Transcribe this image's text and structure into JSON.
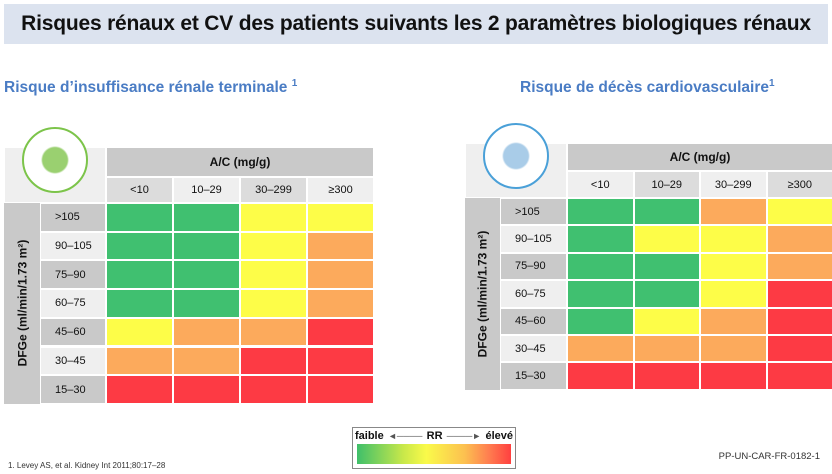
{
  "title": "Risques rénaux et CV des patients suivants les 2 paramètres biologiques rénaux",
  "colors": {
    "G": "#40c070",
    "Y": "#fdfd48",
    "O": "#fcaa5c",
    "R": "#fd3a44",
    "header_gray": "#c9c9c9",
    "header_light": "#efefef",
    "title_bg": "#dce3ef",
    "subtitle_blue": "#4a7cc4"
  },
  "chart_data": [
    {
      "type": "heatmap",
      "title": "Risque d’insuffisance rénale terminale",
      "title_sup": "1",
      "icon": "kidney-icon",
      "xlabel": "A/C (mg/g)",
      "ylabel": "DFGe (ml/min/1.73 m²)",
      "columns": [
        "<10",
        "10–29",
        "30–299",
        "≥300"
      ],
      "rows": [
        ">105",
        "90–105",
        "75–90",
        "60–75",
        "45–60",
        "30–45",
        "15–30"
      ],
      "levels": [
        [
          "G",
          "G",
          "Y",
          "Y"
        ],
        [
          "G",
          "G",
          "Y",
          "O"
        ],
        [
          "G",
          "G",
          "Y",
          "O"
        ],
        [
          "G",
          "G",
          "Y",
          "O"
        ],
        [
          "Y",
          "O",
          "O",
          "R"
        ],
        [
          "O",
          "O",
          "R",
          "R"
        ],
        [
          "R",
          "R",
          "R",
          "R"
        ]
      ]
    },
    {
      "type": "heatmap",
      "title": "Risque de décès cardiovasculaire",
      "title_sup": "1",
      "icon": "heart-icon",
      "xlabel": "A/C (mg/g)",
      "ylabel": "DFGe (ml/min/1.73 m²)",
      "columns": [
        "<10",
        "10–29",
        "30–299",
        "≥300"
      ],
      "rows": [
        ">105",
        "90–105",
        "75–90",
        "60–75",
        "45–60",
        "30–45",
        "15–30"
      ],
      "levels": [
        [
          "G",
          "G",
          "O",
          "Y"
        ],
        [
          "G",
          "Y",
          "Y",
          "O"
        ],
        [
          "G",
          "G",
          "Y",
          "O"
        ],
        [
          "G",
          "G",
          "Y",
          "R"
        ],
        [
          "G",
          "Y",
          "O",
          "R"
        ],
        [
          "O",
          "O",
          "O",
          "R"
        ],
        [
          "R",
          "R",
          "R",
          "R"
        ]
      ]
    }
  ],
  "legend": {
    "low": "faible",
    "mid": "RR",
    "high": "élevé"
  },
  "reference": "1. Levey AS, et al. Kidney Int 2011;80:17–28",
  "code": "PP-UN-CAR-FR-0182-1"
}
